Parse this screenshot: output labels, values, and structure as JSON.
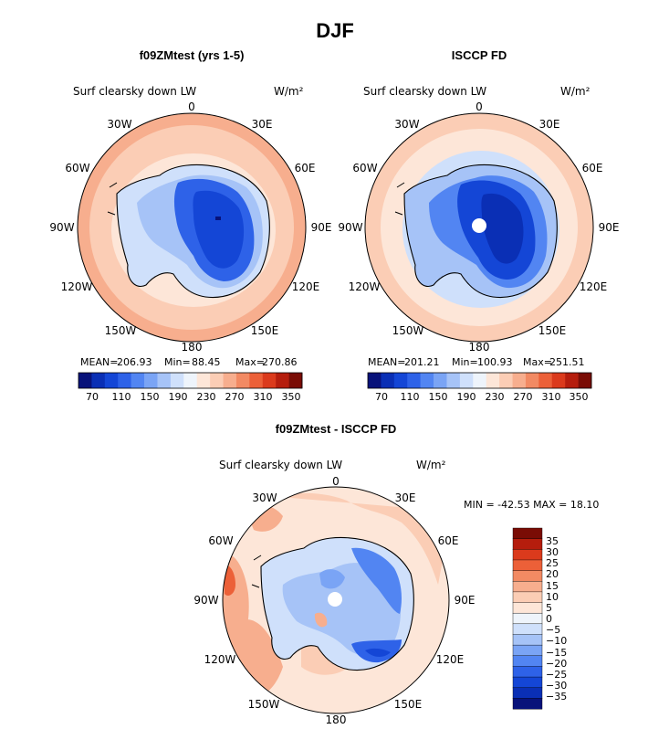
{
  "figure": {
    "title": "DJF"
  },
  "palettes": {
    "abs": [
      "#08127a",
      "#0a2fb5",
      "#1446d6",
      "#2e62e8",
      "#5285f2",
      "#7aa4f5",
      "#a6c3f7",
      "#cfe0fb",
      "#eef4fb",
      "#fde6d8",
      "#fbcdb5",
      "#f7ae8e",
      "#f28a63",
      "#ec6038",
      "#db3a1c",
      "#b51d0d",
      "#7a0c05"
    ],
    "diff": [
      "#08127a",
      "#0a2fb5",
      "#1446d6",
      "#2e62e8",
      "#5285f2",
      "#7aa4f5",
      "#a6c3f7",
      "#cfe0fb",
      "#eef4fb",
      "#fde6d8",
      "#fbcdb5",
      "#f7ae8e",
      "#f28a63",
      "#ec6038",
      "#db3a1c",
      "#b51d0d",
      "#7a0c05"
    ]
  },
  "chart_data": [
    {
      "type": "heatmap",
      "panel_title": "f09ZMtest (yrs 1-5)",
      "variable": "Surf clearsky down LW",
      "units": "W/m²",
      "projection": "south-polar-stereographic",
      "lon_labels": [
        "0",
        "30E",
        "60E",
        "90E",
        "120E",
        "150E",
        "180",
        "150W",
        "120W",
        "90W",
        "60W",
        "30W"
      ],
      "stats": {
        "mean_label": "MEAN=",
        "mean": "206.93",
        "min_label": "Min=",
        "min": "88.45",
        "max_label": "Max=",
        "max": "270.86"
      },
      "colorbar": {
        "orientation": "horizontal",
        "labels": [
          "70",
          "110",
          "150",
          "190",
          "230",
          "270",
          "310",
          "350"
        ]
      }
    },
    {
      "type": "heatmap",
      "panel_title": "ISCCP FD",
      "variable": "Surf clearsky down LW",
      "units": "W/m²",
      "projection": "south-polar-stereographic",
      "lon_labels": [
        "0",
        "30E",
        "60E",
        "90E",
        "120E",
        "150E",
        "180",
        "150W",
        "120W",
        "90W",
        "60W",
        "30W"
      ],
      "stats": {
        "mean_label": "MEAN=",
        "mean": "201.21",
        "min_label": "Min=",
        "min": "100.93",
        "max_label": "Max=",
        "max": "251.51"
      },
      "colorbar": {
        "orientation": "horizontal",
        "labels": [
          "70",
          "110",
          "150",
          "190",
          "230",
          "270",
          "310",
          "350"
        ]
      }
    },
    {
      "type": "heatmap",
      "panel_title": "f09ZMtest - ISCCP FD",
      "variable": "Surf clearsky down LW",
      "units": "W/m²",
      "projection": "south-polar-stereographic",
      "lon_labels": [
        "0",
        "30E",
        "60E",
        "90E",
        "120E",
        "150E",
        "180",
        "150W",
        "120W",
        "90W",
        "60W",
        "30W"
      ],
      "stats_text": "MIN = -42.53 MAX =  18.10",
      "colorbar": {
        "orientation": "vertical",
        "labels": [
          "35",
          "30",
          "25",
          "20",
          "15",
          "10",
          "5",
          "0",
          "−5",
          "−10",
          "−15",
          "−20",
          "−25",
          "−30",
          "−35"
        ]
      }
    }
  ]
}
